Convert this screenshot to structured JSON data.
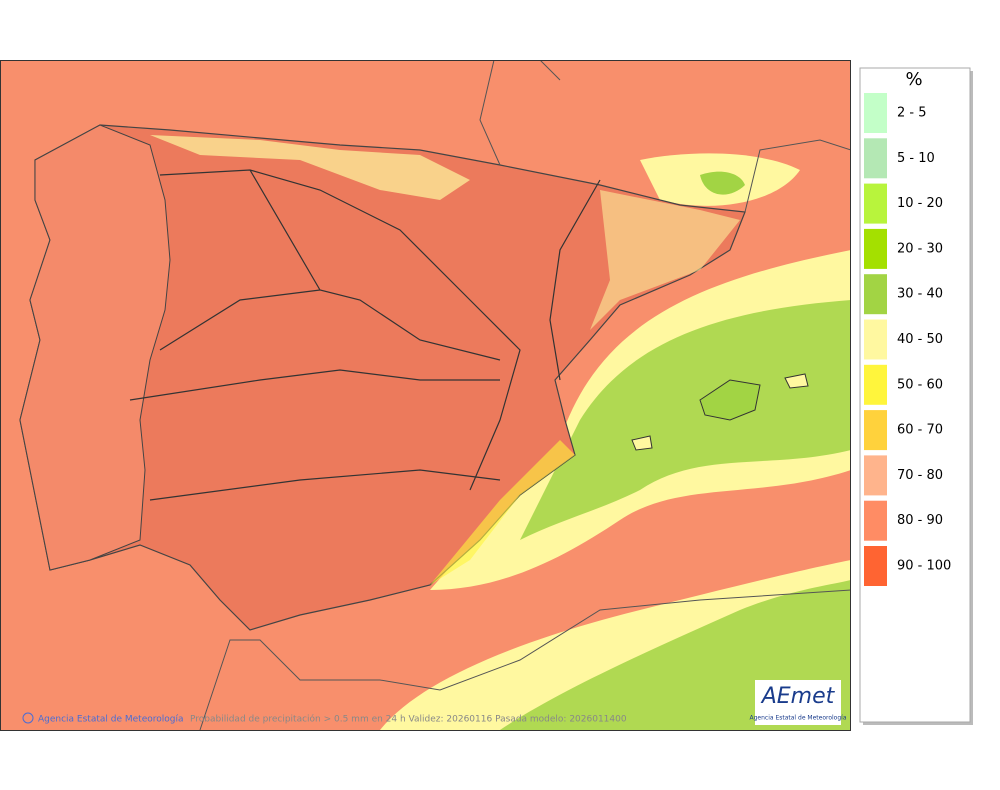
{
  "legend": {
    "title": "%",
    "items": [
      {
        "label": "2 - 5",
        "color": "#c3ffc8"
      },
      {
        "label": "5 - 10",
        "color": "#b4e8b4"
      },
      {
        "label": "10 - 20",
        "color": "#b8f43c"
      },
      {
        "label": "20 - 30",
        "color": "#a4e000"
      },
      {
        "label": "30 - 40",
        "color": "#a2d444"
      },
      {
        "label": "40 - 50",
        "color": "#fff8a0"
      },
      {
        "label": "50 - 60",
        "color": "#fff53c"
      },
      {
        "label": "60 - 70",
        "color": "#ffd23c"
      },
      {
        "label": "70 - 80",
        "color": "#ffb48c"
      },
      {
        "label": "80 - 90",
        "color": "#ff8c64"
      },
      {
        "label": "90 - 100",
        "color": "#ff6432"
      }
    ]
  },
  "footer": {
    "credit": "Agencia Estatal de Meteorología",
    "caption": "Probabilidad de precipitación > 0.5 mm en 24 h Validez: 20260116 Pasada modelo: 2026011400"
  },
  "logo": {
    "text": "AEmet",
    "subtitle": "Agencia Estatal de Meteorología"
  }
}
